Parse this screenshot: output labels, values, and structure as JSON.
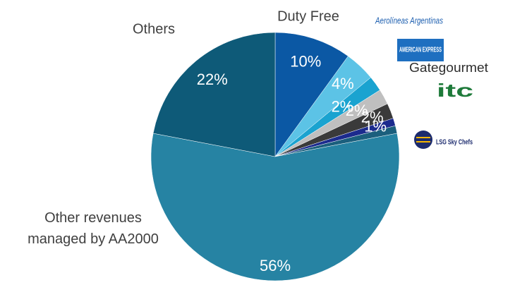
{
  "chart_data": {
    "type": "pie",
    "categories": [
      "Duty Free",
      "Aerolíneas Argentinas",
      "AMERICAN EXPRESS",
      "Gategourmet",
      "itc",
      "LSG Sky Chefs",
      null,
      "Other revenues managed by AA2000",
      "Others"
    ],
    "values": [
      10,
      4,
      2,
      2,
      2,
      1,
      1,
      56,
      22
    ],
    "value_labels": [
      "10%",
      "4%",
      "2%",
      "2%",
      "2%",
      "1%",
      null,
      "56%",
      "22%"
    ],
    "colors": [
      "#0b58a4",
      "#5cc3e6",
      "#1aa3d0",
      "#bfbfbf",
      "#3a3a3a",
      "#1c2b8e",
      "#1b5f7d",
      "#2683a3",
      "#0e5a78"
    ]
  }
}
